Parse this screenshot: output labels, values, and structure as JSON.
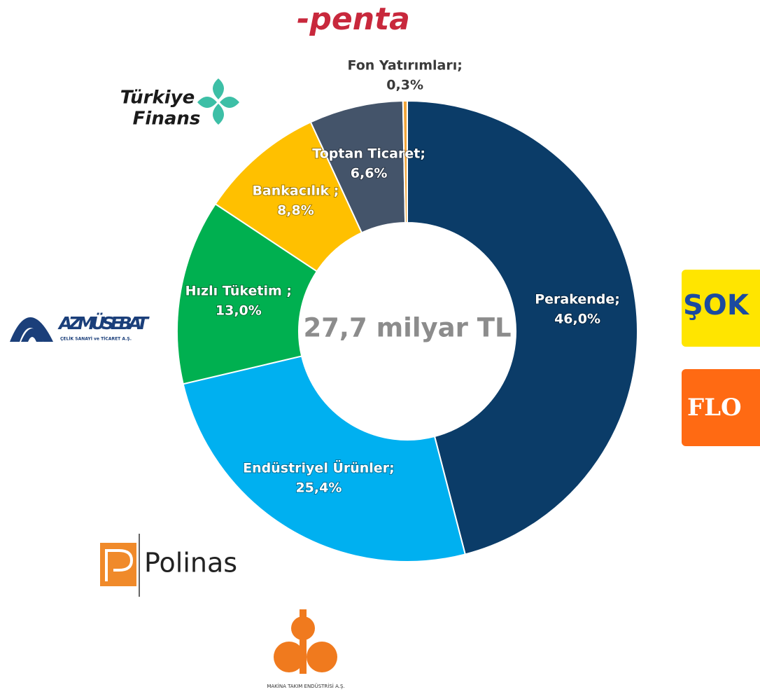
{
  "chart_data": {
    "type": "donut",
    "annotation": "27,7 milyar TL",
    "categories": [
      "Perakende;",
      "Endüstriyel Ürünler;",
      "Hızlı Tüketim ;",
      "Bankacılık ;",
      "Toptan Ticaret;",
      "Fon Yatırımları;"
    ],
    "values": [
      46.0,
      25.4,
      13.0,
      8.8,
      6.6,
      0.3
    ],
    "value_labels": [
      "46,0%",
      "25,4%",
      "13,0%",
      "8,8%",
      "6,6%",
      "0,3%"
    ],
    "colors": [
      "#0b3c68",
      "#00b0f0",
      "#00b050",
      "#ffc000",
      "#44546a",
      "#f2a53a"
    ]
  },
  "logos": {
    "penta": "-penta",
    "turkiye_finans": [
      "Türkiye",
      "Finans"
    ],
    "azmusebat": "AZMÜSEBAT",
    "azmusebat_sub": "ÇELİK SANAYİ ve TİCARET A.Ş.",
    "sok": "ŞOK",
    "flo": "FLO",
    "polinas": "Polinas",
    "mte_sub": "MAKİNA TAKIM ENDÜSTRİSİ A.Ş."
  }
}
